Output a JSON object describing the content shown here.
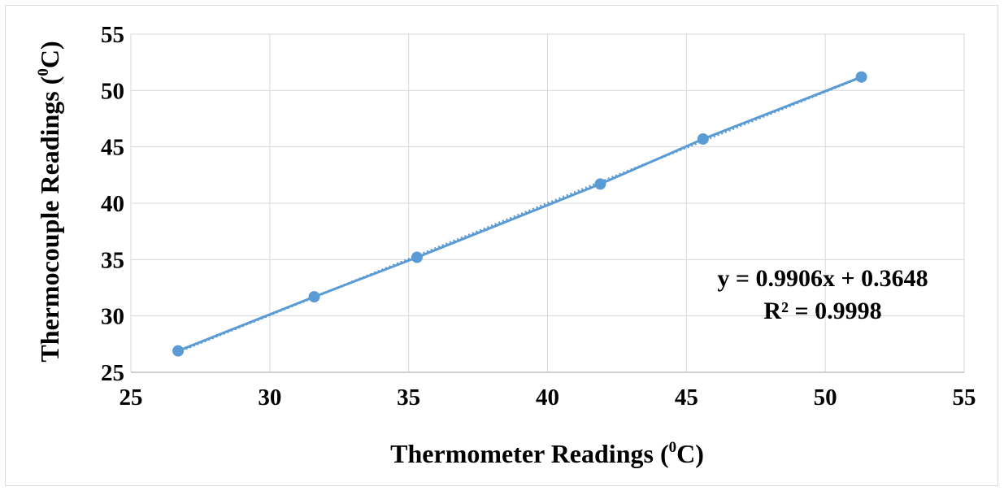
{
  "chart_data": {
    "type": "scatter",
    "xlabel": {
      "pre": "Thermometer Readings (",
      "sup": "0",
      "post": "C)"
    },
    "ylabel": {
      "pre": "Thermocouple Readings (",
      "sup": "0",
      "post": "C)"
    },
    "xlim": [
      25,
      55
    ],
    "ylim": [
      25,
      55
    ],
    "x_ticks": [
      25,
      30,
      35,
      40,
      45,
      50,
      55
    ],
    "y_ticks": [
      25,
      30,
      35,
      40,
      45,
      50,
      55
    ],
    "grid": true,
    "series": [
      {
        "x": [
          26.7,
          31.6,
          35.3,
          41.9,
          45.6,
          51.3
        ],
        "y": [
          26.9,
          31.7,
          35.2,
          41.7,
          45.7,
          51.2
        ],
        "color": "#5b9bd5",
        "style": "line+markers"
      }
    ],
    "trendline": {
      "slope": 0.9906,
      "intercept": 0.3648,
      "style": "dotted",
      "color": "#5b9bd5"
    },
    "annotations": {
      "equation": "y = 0.9906x + 0.3648",
      "r_squared": "R² = 0.9998"
    }
  }
}
